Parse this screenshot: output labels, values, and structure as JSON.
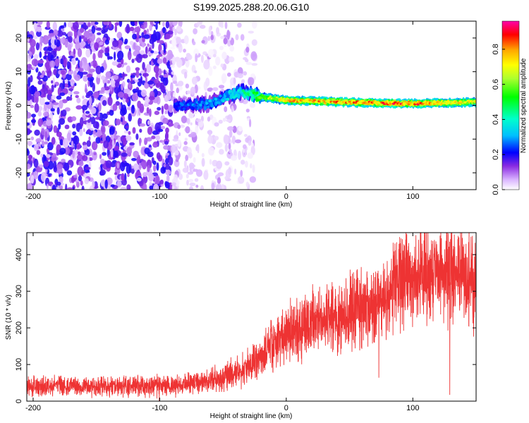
{
  "figure": {
    "title": "S199.2025.288.20.06.G10"
  },
  "chart_data": [
    {
      "type": "heatmap",
      "title": "S199.2025.288.20.06.G10",
      "xlabel": "Height of straight line (km)",
      "ylabel": "Frequency (Hz)",
      "xlim": [
        -205,
        150
      ],
      "ylim": [
        -25,
        25
      ],
      "xticks": [
        -200,
        -100,
        0,
        100
      ],
      "yticks": [
        -20,
        -10,
        0,
        10,
        20
      ],
      "colorbar": {
        "label": "Normalized spectral amplitude",
        "range": [
          0,
          0.96
        ],
        "ticks": [
          0.0,
          0.2,
          0.4,
          0.6,
          0.8
        ],
        "colormap": [
          "#ffffff",
          "#d9b3ff",
          "#8a2be2",
          "#4b00ff",
          "#0000ff",
          "#00bfff",
          "#00ffcc",
          "#00ff00",
          "#adff2f",
          "#ffff00",
          "#ffa500",
          "#ff0000",
          "#ff00aa"
        ]
      },
      "ridge": {
        "description_points": [
          {
            "x": -85,
            "freq": 0,
            "amp": 0.25
          },
          {
            "x": -60,
            "freq": 0.5,
            "amp": 0.3
          },
          {
            "x": -45,
            "freq": 3,
            "amp": 0.35
          },
          {
            "x": -35,
            "freq": 4,
            "amp": 0.4
          },
          {
            "x": -20,
            "freq": 2.5,
            "amp": 0.6
          },
          {
            "x": 0,
            "freq": 1.5,
            "amp": 0.75
          },
          {
            "x": 40,
            "freq": 1.0,
            "amp": 0.8
          },
          {
            "x": 100,
            "freq": 0.5,
            "amp": 0.85
          },
          {
            "x": 150,
            "freq": 1.0,
            "amp": 0.7
          }
        ]
      }
    },
    {
      "type": "line",
      "xlabel": "Height of straight line (km)",
      "ylabel": "SNR (10 * v/v)",
      "xlim": [
        -205,
        150
      ],
      "ylim": [
        0,
        460
      ],
      "xticks": [
        -200,
        -100,
        0,
        100
      ],
      "yticks": [
        0,
        100,
        200,
        300,
        400
      ],
      "color": "#ee3333",
      "series": [
        {
          "x": [
            -205,
            -180,
            -150,
            -120,
            -100,
            -80,
            -60,
            -50,
            -40,
            -30,
            -20,
            -15,
            -10,
            0,
            10,
            20,
            30,
            40,
            50,
            60,
            70,
            80,
            85,
            90,
            95,
            100,
            110,
            120,
            130,
            140,
            150
          ],
          "values": [
            40,
            40,
            40,
            40,
            42,
            45,
            55,
            65,
            80,
            95,
            120,
            140,
            160,
            180,
            200,
            215,
            220,
            235,
            250,
            255,
            255,
            290,
            320,
            330,
            340,
            340,
            345,
            345,
            340,
            330,
            315
          ]
        }
      ]
    }
  ]
}
